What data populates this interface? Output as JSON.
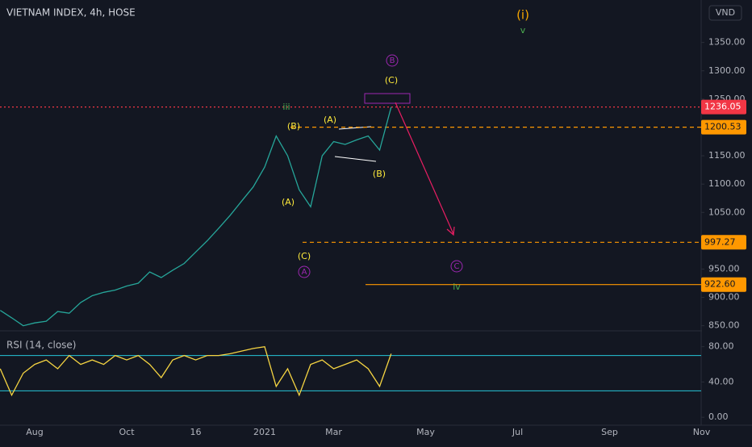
{
  "chart_data": [
    {
      "type": "line",
      "title": "VIETNAM INDEX, 4h, HOSE",
      "currency": "VND",
      "categories": [
        null,
        null,
        null,
        "Aug",
        null,
        null,
        null,
        null,
        null,
        null,
        null,
        "Oct",
        null,
        null,
        null,
        null,
        null,
        "16",
        null,
        null,
        null,
        null,
        null,
        "2021",
        null,
        null,
        null,
        null,
        null,
        "Mar",
        null,
        null,
        null,
        null,
        null,
        null,
        null,
        "May",
        null,
        null,
        null,
        null,
        null,
        null,
        null,
        "Jul",
        null,
        null,
        null,
        null,
        null,
        null,
        null,
        "Sep",
        null,
        null,
        null,
        null,
        null,
        null,
        null,
        "Nov"
      ],
      "series": [
        {
          "color": "#26a69a",
          "values": [
            877,
            864,
            850,
            855,
            858,
            875,
            872,
            891,
            903,
            909,
            913,
            920,
            925,
            945,
            935,
            948,
            960,
            980,
            1000,
            1022,
            1045,
            1070,
            1095,
            1130,
            1185,
            1150,
            1090,
            1060,
            1150,
            1175,
            1170,
            1178,
            1185,
            1160,
            1236.05,
            null,
            null,
            null,
            null,
            null,
            null,
            null,
            null,
            null,
            null,
            null,
            null,
            null,
            null,
            null,
            null,
            null,
            null,
            null,
            null,
            null,
            null,
            null,
            null,
            null,
            null,
            null
          ]
        }
      ],
      "ylim": [
        841,
        1425
      ],
      "yticks": [
        {
          "value": 850,
          "label": "850.00"
        },
        {
          "value": 900,
          "label": "900.00"
        },
        {
          "value": 950,
          "label": "950.00"
        },
        {
          "value": 1000,
          "label": "1000.00"
        },
        {
          "value": 1050,
          "label": "1050.00"
        },
        {
          "value": 1100,
          "label": "1100.00"
        },
        {
          "value": 1150,
          "label": "1150.00"
        },
        {
          "value": 1200,
          "label": "1200.00"
        },
        {
          "value": 1250,
          "label": "1250.00"
        },
        {
          "value": 1300,
          "label": "1300.00"
        },
        {
          "value": 1350,
          "label": "1350.00"
        }
      ],
      "levels": [
        {
          "value": 1236.05,
          "color": "#f23645"
        },
        {
          "value": 1200.53,
          "color": "#ff9800"
        },
        {
          "value": 997.27,
          "color": "#ff9800"
        },
        {
          "value": 922.6,
          "label": "922.60",
          "color": "#ff9800"
        }
      ],
      "annotations": [
        {
          "text": "(i)",
          "color": "#f7a600"
        },
        {
          "text": "v",
          "color": "#4caf50"
        },
        {
          "text": "B",
          "color": "#9c27b0",
          "circled": true
        },
        {
          "text": "(C)",
          "color": "#ffeb3b"
        },
        {
          "text": "iii",
          "color": "#4caf50"
        },
        {
          "text": "(B)",
          "color": "#ffeb3b"
        },
        {
          "text": "(A)",
          "color": "#ffeb3b"
        },
        {
          "text": "(A)",
          "color": "#ffeb3b"
        },
        {
          "text": "(C)",
          "color": "#ffeb3b"
        },
        {
          "text": "A",
          "color": "#9c27b0",
          "circled": true
        },
        {
          "text": "(B)",
          "color": "#ffeb3b"
        },
        {
          "text": "C",
          "color": "#9c27b0",
          "circled": true
        },
        {
          "text": "iv",
          "color": "#4caf50"
        }
      ]
    },
    {
      "type": "line",
      "title": "RSI (14, close)",
      "series": [
        {
          "color": "#f5d442",
          "values": [
            55,
            25,
            50,
            60,
            65,
            55,
            70,
            60,
            65,
            60,
            70,
            65,
            70,
            60,
            45,
            65,
            70,
            65,
            70,
            70,
            72,
            75,
            78,
            80,
            35,
            55,
            25,
            60,
            65,
            55,
            60,
            65,
            55,
            35,
            72,
            null,
            null,
            null,
            null,
            null,
            null,
            null,
            null,
            null,
            null,
            null,
            null,
            null,
            null,
            null,
            null,
            null,
            null,
            null,
            null,
            null,
            null,
            null,
            null,
            null,
            null,
            null
          ]
        }
      ],
      "ylim": [
        -9,
        98
      ],
      "yticks": [
        {
          "value": 0,
          "label": "0.00"
        },
        {
          "value": 40,
          "label": "40.00"
        },
        {
          "value": 80,
          "label": "80.00"
        }
      ],
      "bands": [
        70,
        30
      ],
      "band_color": "#26c6da"
    }
  ]
}
